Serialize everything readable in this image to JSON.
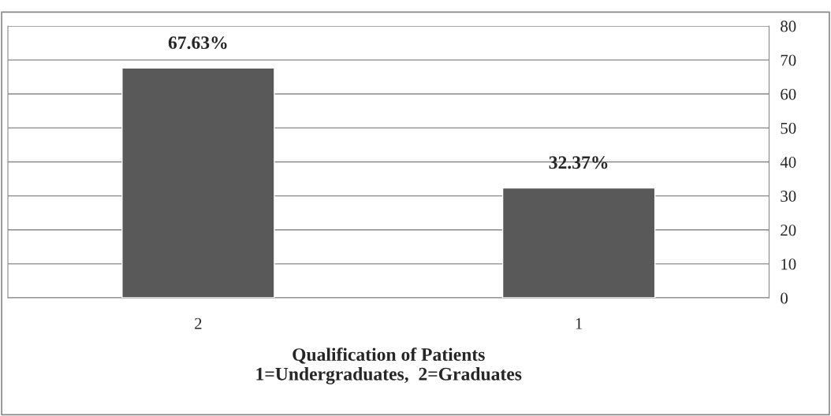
{
  "chart_data": {
    "type": "bar",
    "xlabel": "Qualification of Patients\n1=Undergraduates,  2=Graduates",
    "categories": [
      "2",
      "1"
    ],
    "values": [
      67.63,
      32.37
    ],
    "color": "#595959",
    "value_labels": [
      "67.63%",
      "32.37%"
    ],
    "ylim": [
      0,
      80
    ],
    "yticks": [
      0,
      10,
      20,
      30,
      40,
      50,
      60,
      70,
      80
    ],
    "grid": "y",
    "legend": false
  }
}
